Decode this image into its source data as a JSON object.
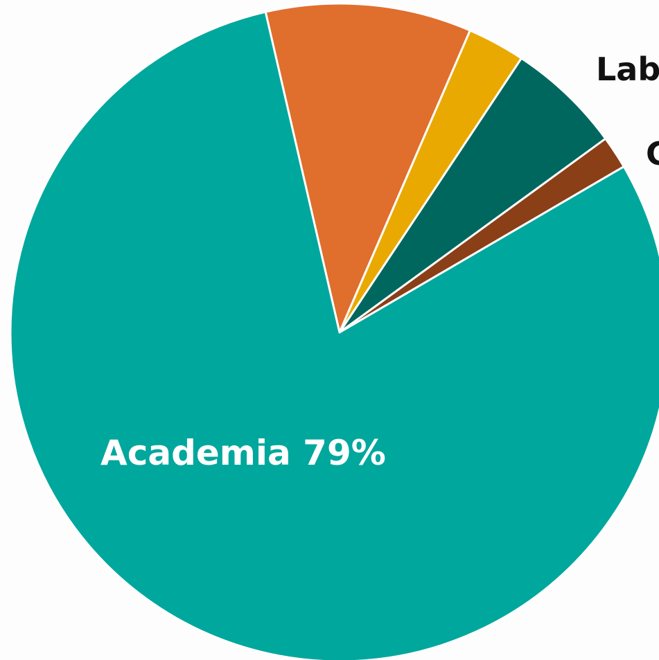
{
  "chart_data": {
    "type": "pie",
    "title": "",
    "start_angle_deg": -13,
    "direction": "clockwise",
    "slices": [
      {
        "name": "",
        "value": 10.0,
        "color": "#e06e2d"
      },
      {
        "name": "",
        "value": 2.8,
        "color": "#e9a900"
      },
      {
        "name": "",
        "value": 5.6,
        "color": "#00675f"
      },
      {
        "name": "",
        "value": 1.6,
        "color": "#8a3f17"
      },
      {
        "name": "Academia",
        "value": 79,
        "color": "#00a79d"
      }
    ],
    "labels": [
      {
        "text": "Academia 79%",
        "color": "#ffffff",
        "position": "inside"
      },
      {
        "text": "Lab",
        "color": "#111111",
        "position": "outside-right",
        "truncated": true
      },
      {
        "text": "C",
        "color": "#111111",
        "position": "outside-right",
        "truncated": true
      }
    ]
  }
}
